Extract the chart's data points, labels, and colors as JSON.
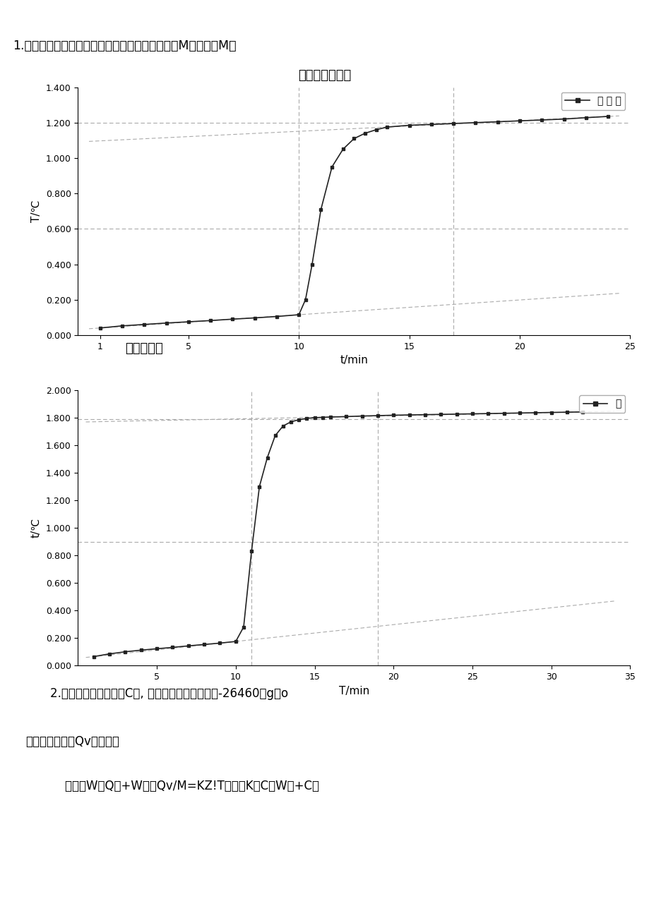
{
  "title1": "1.用雷诺图解法求出苯甲酸和蔡燃烧前后的温度差M本甲酸和M和",
  "chart1_title": "苯甲酸的雷诺图",
  "chart2_subtitle": "蔡的雷诺图",
  "chart1_legend": "苯 甲 酸",
  "chart2_legend": "萘",
  "chart1_xlabel": "t/min",
  "chart1_ylabel": "T/℃",
  "chart2_xlabel": "T/min",
  "chart2_ylabel": "t/℃",
  "chart1_xlim": [
    0,
    25
  ],
  "chart1_ylim": [
    0.0,
    1.4
  ],
  "chart2_xlim": [
    0,
    35
  ],
  "chart2_ylim": [
    0.0,
    2.0
  ],
  "text1": "2.计算量热计的水当量C总, 已知苯甲酸的烧燃熔为-26460八g，o",
  "text2": "求出蔡的燃烧热Qv和义盘。",
  "text3": "    解：由W统Q维+W样品Qv/M=KZ!T；其中K为C水W水+C总",
  "line_color": "#222222",
  "dashed_color": "#aaaaaa",
  "bg_color": "#ffffff"
}
